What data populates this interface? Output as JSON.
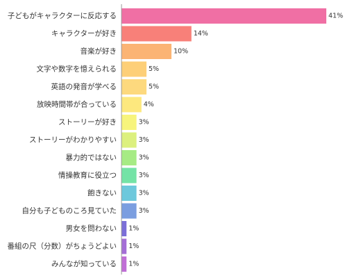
{
  "chart_data": {
    "type": "bar",
    "orientation": "horizontal",
    "categories": [
      "子どもがキャラクターに反応する",
      "キャラクターが好き",
      "音楽が好き",
      "文字や数字を憶えられる",
      "英語の発音が学べる",
      "放映時間帯が合っている",
      "ストーリーが好き",
      "ストーリーがわかりやすい",
      "暴力的ではない",
      "情操教育に役立つ",
      "飽きない",
      "自分も子どものころ見ていた",
      "男女を問わない",
      "番組の尺（分数）がちょうどよい",
      "みんなが知っている"
    ],
    "values": [
      41,
      14,
      10,
      5,
      5,
      4,
      3,
      3,
      3,
      3,
      3,
      3,
      1,
      1,
      1
    ],
    "value_labels": [
      "41%",
      "14%",
      "10%",
      "5%",
      "5%",
      "4%",
      "3%",
      "3%",
      "3%",
      "3%",
      "3%",
      "3%",
      "1%",
      "1%",
      "1%"
    ],
    "colors": [
      "#f06fa4",
      "#f88079",
      "#fbb474",
      "#fdcf78",
      "#fdd97e",
      "#fde87e",
      "#f7f47c",
      "#dcf07e",
      "#a6eb84",
      "#74e3a6",
      "#6dc8dc",
      "#7b9ee0",
      "#7b6fd8",
      "#a46ed6",
      "#c06fd6"
    ],
    "xlim": [
      0,
      41
    ],
    "grid": false,
    "legend": "none"
  }
}
